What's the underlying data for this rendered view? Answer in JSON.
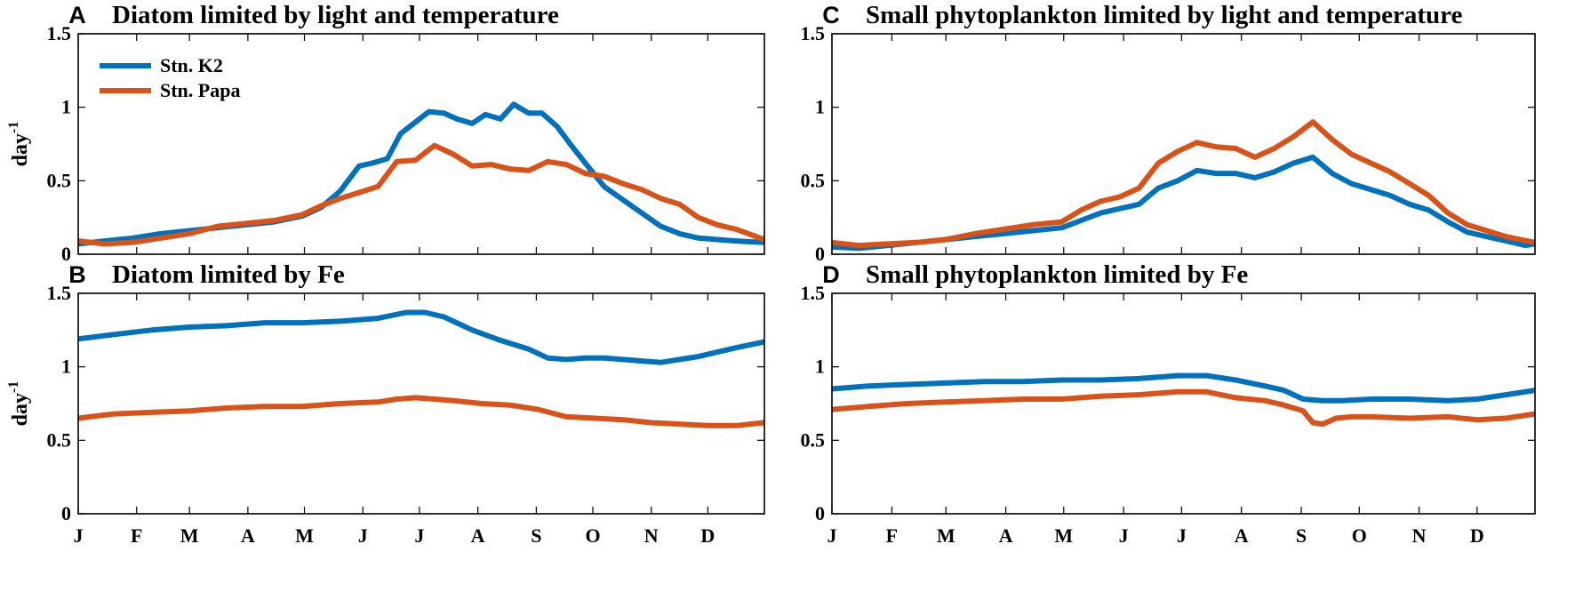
{
  "colors": {
    "k2": "#0072bd",
    "papa": "#d95319"
  },
  "legend": [
    {
      "label": "Stn. K2",
      "color": "#0072bd"
    },
    {
      "label": "Stn. Papa",
      "color": "#d95319"
    }
  ],
  "ylabel": {
    "base": "day",
    "sup": "-1"
  },
  "months": [
    "J",
    "F",
    "M",
    "A",
    "M",
    "J",
    "J",
    "A",
    "S",
    "O",
    "N",
    "D"
  ],
  "chart_data": [
    {
      "panel": "A",
      "type": "line",
      "title": "Diatom limited by light and temperature",
      "xlabel": "",
      "ylabel": "day-1",
      "xlim": [
        1,
        365
      ],
      "ylim": [
        0,
        1.5
      ],
      "yticks": [
        0,
        0.5,
        1,
        1.5
      ],
      "ytick_labels": [
        "0",
        "0.5",
        "1",
        "1.5"
      ],
      "series": [
        {
          "name": "Stn. K2",
          "x": [
            1,
            15,
            30,
            45,
            60,
            75,
            90,
            105,
            120,
            130,
            140,
            150,
            157,
            165,
            172,
            180,
            187,
            195,
            202,
            210,
            217,
            225,
            232,
            240,
            247,
            255,
            262,
            270,
            280,
            290,
            300,
            310,
            320,
            330,
            340,
            350,
            365
          ],
          "values": [
            0.07,
            0.09,
            0.11,
            0.14,
            0.16,
            0.18,
            0.2,
            0.22,
            0.26,
            0.32,
            0.43,
            0.6,
            0.62,
            0.65,
            0.82,
            0.9,
            0.97,
            0.96,
            0.92,
            0.89,
            0.95,
            0.92,
            1.02,
            0.96,
            0.96,
            0.87,
            0.75,
            0.62,
            0.46,
            0.37,
            0.28,
            0.19,
            0.14,
            0.11,
            0.1,
            0.09,
            0.08
          ]
        },
        {
          "name": "Stn. Papa",
          "x": [
            1,
            15,
            30,
            45,
            60,
            75,
            90,
            105,
            120,
            130,
            140,
            150,
            160,
            170,
            180,
            185,
            190,
            195,
            200,
            210,
            220,
            230,
            240,
            250,
            260,
            270,
            280,
            290,
            300,
            310,
            320,
            330,
            340,
            350,
            365
          ],
          "values": [
            0.09,
            0.07,
            0.08,
            0.11,
            0.14,
            0.19,
            0.21,
            0.23,
            0.27,
            0.33,
            0.38,
            0.42,
            0.46,
            0.63,
            0.64,
            0.69,
            0.74,
            0.71,
            0.68,
            0.6,
            0.61,
            0.58,
            0.57,
            0.63,
            0.61,
            0.55,
            0.53,
            0.48,
            0.44,
            0.38,
            0.34,
            0.25,
            0.2,
            0.17,
            0.1
          ]
        }
      ]
    },
    {
      "panel": "B",
      "type": "line",
      "title": "Diatom limited by Fe",
      "xlabel": "",
      "ylabel": "day-1",
      "xlim": [
        1,
        365
      ],
      "ylim": [
        0,
        1.5
      ],
      "yticks": [
        0,
        0.5,
        1,
        1.5
      ],
      "ytick_labels": [
        "0",
        "0.5",
        "1",
        "1.5"
      ],
      "series": [
        {
          "name": "Stn. K2",
          "x": [
            1,
            20,
            40,
            60,
            80,
            100,
            120,
            140,
            160,
            175,
            185,
            195,
            210,
            225,
            240,
            250,
            260,
            270,
            280,
            290,
            300,
            310,
            320,
            330,
            340,
            350,
            365
          ],
          "values": [
            1.19,
            1.22,
            1.25,
            1.27,
            1.28,
            1.3,
            1.3,
            1.31,
            1.33,
            1.37,
            1.37,
            1.34,
            1.25,
            1.18,
            1.12,
            1.06,
            1.05,
            1.06,
            1.06,
            1.05,
            1.04,
            1.03,
            1.05,
            1.07,
            1.1,
            1.13,
            1.17
          ]
        },
        {
          "name": "Stn. Papa",
          "x": [
            1,
            20,
            40,
            60,
            80,
            100,
            120,
            140,
            160,
            170,
            180,
            190,
            200,
            215,
            230,
            245,
            260,
            275,
            290,
            305,
            320,
            335,
            350,
            365
          ],
          "values": [
            0.65,
            0.68,
            0.69,
            0.7,
            0.72,
            0.73,
            0.73,
            0.75,
            0.76,
            0.78,
            0.79,
            0.78,
            0.77,
            0.75,
            0.74,
            0.71,
            0.66,
            0.65,
            0.64,
            0.62,
            0.61,
            0.6,
            0.6,
            0.62
          ]
        }
      ]
    },
    {
      "panel": "C",
      "type": "line",
      "title": "Small phytoplankton limited by light and temperature",
      "xlabel": "",
      "ylabel": "",
      "xlim": [
        1,
        365
      ],
      "ylim": [
        0,
        1.5
      ],
      "yticks": [
        0,
        0.5,
        1,
        1.5
      ],
      "ytick_labels": [
        "0",
        "0.5",
        "1",
        "1.5"
      ],
      "series": [
        {
          "name": "Stn. K2",
          "x": [
            1,
            15,
            30,
            45,
            60,
            75,
            90,
            105,
            120,
            130,
            140,
            150,
            160,
            170,
            180,
            190,
            200,
            210,
            220,
            230,
            240,
            250,
            260,
            270,
            280,
            290,
            300,
            310,
            320,
            330,
            340,
            350,
            360,
            365
          ],
          "values": [
            0.05,
            0.04,
            0.06,
            0.08,
            0.1,
            0.12,
            0.14,
            0.16,
            0.18,
            0.23,
            0.28,
            0.31,
            0.34,
            0.45,
            0.5,
            0.57,
            0.55,
            0.55,
            0.52,
            0.56,
            0.62,
            0.66,
            0.55,
            0.48,
            0.44,
            0.4,
            0.34,
            0.3,
            0.22,
            0.15,
            0.12,
            0.09,
            0.06,
            0.07
          ]
        },
        {
          "name": "Stn. Papa",
          "x": [
            1,
            15,
            30,
            45,
            60,
            75,
            90,
            105,
            120,
            130,
            140,
            150,
            160,
            170,
            180,
            190,
            200,
            210,
            220,
            230,
            240,
            250,
            260,
            270,
            280,
            290,
            300,
            310,
            320,
            330,
            340,
            350,
            365
          ],
          "values": [
            0.08,
            0.06,
            0.07,
            0.08,
            0.1,
            0.14,
            0.17,
            0.2,
            0.22,
            0.3,
            0.36,
            0.39,
            0.45,
            0.62,
            0.7,
            0.76,
            0.73,
            0.72,
            0.66,
            0.72,
            0.8,
            0.9,
            0.78,
            0.68,
            0.62,
            0.56,
            0.48,
            0.4,
            0.28,
            0.2,
            0.16,
            0.12,
            0.08
          ]
        }
      ]
    },
    {
      "panel": "D",
      "type": "line",
      "title": "Small phytoplankton limited by Fe",
      "xlabel": "",
      "ylabel": "",
      "xlim": [
        1,
        365
      ],
      "ylim": [
        0,
        1.5
      ],
      "yticks": [
        0,
        0.5,
        1,
        1.5
      ],
      "ytick_labels": [
        "0",
        "0.5",
        "1",
        "1.5"
      ],
      "series": [
        {
          "name": "Stn. K2",
          "x": [
            1,
            20,
            40,
            60,
            80,
            100,
            120,
            140,
            160,
            170,
            180,
            195,
            210,
            225,
            235,
            245,
            255,
            265,
            280,
            300,
            320,
            335,
            350,
            365
          ],
          "values": [
            0.85,
            0.87,
            0.88,
            0.89,
            0.9,
            0.9,
            0.91,
            0.91,
            0.92,
            0.93,
            0.94,
            0.94,
            0.91,
            0.87,
            0.84,
            0.78,
            0.77,
            0.77,
            0.78,
            0.78,
            0.77,
            0.78,
            0.81,
            0.84
          ]
        },
        {
          "name": "Stn. Papa",
          "x": [
            1,
            20,
            40,
            60,
            80,
            100,
            120,
            140,
            160,
            170,
            180,
            195,
            210,
            225,
            235,
            245,
            250,
            255,
            262,
            270,
            280,
            300,
            320,
            335,
            350,
            365
          ],
          "values": [
            0.71,
            0.73,
            0.75,
            0.76,
            0.77,
            0.78,
            0.78,
            0.8,
            0.81,
            0.82,
            0.83,
            0.83,
            0.79,
            0.77,
            0.74,
            0.7,
            0.62,
            0.61,
            0.65,
            0.66,
            0.66,
            0.65,
            0.66,
            0.64,
            0.65,
            0.68
          ]
        }
      ]
    }
  ]
}
